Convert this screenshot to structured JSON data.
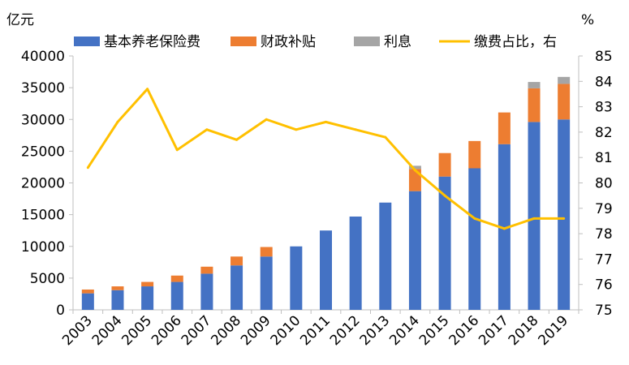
{
  "chart_data": {
    "type": "bar",
    "subtype": "stacked-bar-with-line",
    "categories": [
      "2003",
      "2004",
      "2005",
      "2006",
      "2007",
      "2008",
      "2009",
      "2010",
      "2011",
      "2012",
      "2013",
      "2014",
      "2015",
      "2016",
      "2017",
      "2018",
      "2019"
    ],
    "series": [
      {
        "name": "基本养老保险费",
        "type": "bar",
        "axis": "left",
        "color": "#4472C4",
        "values": [
          2600,
          3100,
          3700,
          4400,
          5700,
          7000,
          8400,
          10000,
          12500,
          14700,
          16900,
          18700,
          21000,
          22300,
          26100,
          29600,
          30000
        ]
      },
      {
        "name": "财政补贴",
        "type": "bar",
        "axis": "left",
        "color": "#ED7D31",
        "values": [
          600,
          600,
          700,
          1000,
          1100,
          1400,
          1500,
          0,
          0,
          0,
          0,
          3500,
          3700,
          4300,
          5000,
          5300,
          5600
        ]
      },
      {
        "name": "利息",
        "type": "bar",
        "axis": "left",
        "color": "#A5A5A5",
        "values": [
          0,
          0,
          0,
          0,
          0,
          0,
          0,
          0,
          0,
          0,
          0,
          500,
          0,
          0,
          0,
          1000,
          1100
        ]
      },
      {
        "name": "缴费占比，右",
        "type": "line",
        "axis": "right",
        "color": "#FFC000",
        "values": [
          80.6,
          82.4,
          83.7,
          81.3,
          82.1,
          81.7,
          82.5,
          82.1,
          82.4,
          82.1,
          81.8,
          80.5,
          79.5,
          78.6,
          78.2,
          78.6,
          78.6
        ]
      }
    ],
    "left_axis": {
      "label": "亿元",
      "min": 0,
      "max": 40000,
      "ticks": [
        "0",
        "5000",
        "10000",
        "15000",
        "20000",
        "25000",
        "30000",
        "35000",
        "40000"
      ]
    },
    "right_axis": {
      "label": "%",
      "min": 75,
      "max": 85,
      "ticks": [
        "75",
        "76",
        "77",
        "78",
        "79",
        "80",
        "81",
        "82",
        "83",
        "84",
        "85"
      ]
    },
    "grid": false,
    "legend_position": "top"
  }
}
